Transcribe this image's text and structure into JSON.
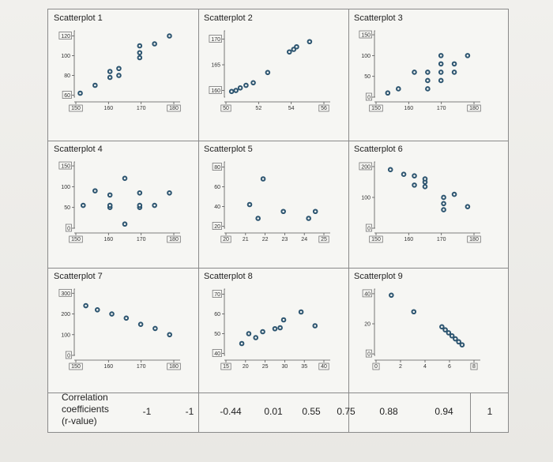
{
  "chart_data": [
    {
      "type": "scatter",
      "title": "Scatterplot 1",
      "xlim": [
        148,
        182
      ],
      "ylim": [
        58,
        122
      ],
      "xticks": [
        "150",
        "160",
        "170",
        "180"
      ],
      "xboxed": [
        0,
        3
      ],
      "yticks": [
        {
          "v": 120,
          "t": "120",
          "boxed": true
        },
        {
          "v": 100,
          "t": "100"
        },
        {
          "v": 80,
          "t": "80"
        },
        {
          "v": 60,
          "t": "60",
          "boxed": true
        }
      ],
      "x": [
        150,
        155,
        160,
        160,
        163,
        163,
        170,
        170,
        170,
        175,
        180
      ],
      "y": [
        62,
        70,
        78,
        84,
        80,
        87,
        98,
        103,
        110,
        112,
        120
      ]
    },
    {
      "type": "scatter",
      "title": "Scatterplot 2",
      "xlim": [
        49.5,
        56.5
      ],
      "ylim": [
        158.7,
        171
      ],
      "xticks": [
        "50",
        "52",
        "54",
        "56"
      ],
      "xboxed": [
        0,
        3
      ],
      "yticks": [
        {
          "v": 170,
          "t": "170",
          "boxed": true
        },
        {
          "v": 165,
          "t": "165"
        },
        {
          "v": 160,
          "t": "160",
          "boxed": true
        }
      ],
      "x": [
        50,
        50.3,
        50.6,
        51,
        51.5,
        52.5,
        54,
        54.3,
        54.5,
        55.4
      ],
      "y": [
        159.8,
        160,
        160.5,
        161,
        161.5,
        163.5,
        167.5,
        168,
        168.5,
        169.5
      ]
    },
    {
      "type": "scatter",
      "title": "Scatterplot 3",
      "xlim": [
        145,
        183
      ],
      "ylim": [
        0,
        152
      ],
      "xticks": [
        "150",
        "160",
        "170",
        "180"
      ],
      "xboxed": [
        0,
        3
      ],
      "yticks": [
        {
          "v": 150,
          "t": "150",
          "boxed": true
        },
        {
          "v": 100,
          "t": "100"
        },
        {
          "v": 50,
          "t": "50"
        },
        {
          "v": 0,
          "t": "0",
          "boxed": true
        }
      ],
      "x": [
        150,
        154,
        160,
        165,
        165,
        165,
        170,
        170,
        170,
        170,
        175,
        175,
        180
      ],
      "y": [
        10,
        20,
        60,
        20,
        40,
        60,
        40,
        60,
        80,
        100,
        60,
        80,
        100
      ]
    },
    {
      "type": "scatter",
      "title": "Scatterplot 4",
      "xlim": [
        148,
        182
      ],
      "ylim": [
        0,
        152
      ],
      "xticks": [
        "150",
        "160",
        "170",
        "180"
      ],
      "xboxed": [
        0,
        3
      ],
      "yticks": [
        {
          "v": 150,
          "t": "150",
          "boxed": true
        },
        {
          "v": 100,
          "t": "100"
        },
        {
          "v": 50,
          "t": "50"
        },
        {
          "v": 0,
          "t": "0",
          "boxed": true
        }
      ],
      "x": [
        151,
        155,
        160,
        160,
        160,
        165,
        165,
        170,
        170,
        170,
        175,
        180
      ],
      "y": [
        55,
        90,
        50,
        55,
        80,
        10,
        120,
        50,
        85,
        55,
        55,
        85
      ]
    },
    {
      "type": "scatter",
      "title": "Scatterplot 5",
      "xlim": [
        19.5,
        25.5
      ],
      "ylim": [
        18,
        82
      ],
      "xticks": [
        "20",
        "21",
        "22",
        "23",
        "24",
        "25"
      ],
      "xboxed": [
        0,
        5
      ],
      "yticks": [
        {
          "v": 80,
          "t": "80",
          "boxed": true
        },
        {
          "v": 60,
          "t": "60"
        },
        {
          "v": 40,
          "t": "40"
        },
        {
          "v": 20,
          "t": "20",
          "boxed": true
        }
      ],
      "x": [
        21,
        21.5,
        21.8,
        23,
        24.5,
        24.9
      ],
      "y": [
        42,
        28,
        68,
        35,
        28,
        35
      ]
    },
    {
      "type": "scatter",
      "title": "Scatterplot 6",
      "xlim": [
        145,
        183
      ],
      "ylim": [
        0,
        205
      ],
      "xticks": [
        "150",
        "160",
        "170",
        "180"
      ],
      "xboxed": [
        0,
        3
      ],
      "yticks": [
        {
          "v": 200,
          "t": "200",
          "boxed": true
        },
        {
          "v": 100,
          "t": "100"
        },
        {
          "v": 0,
          "t": "0",
          "boxed": true
        }
      ],
      "x": [
        151,
        156,
        160,
        160,
        164,
        164,
        164,
        171,
        171,
        171,
        175,
        180
      ],
      "y": [
        190,
        175,
        170,
        140,
        135,
        150,
        160,
        100,
        80,
        60,
        110,
        70
      ]
    },
    {
      "type": "scatter",
      "title": "Scatterplot 7",
      "xlim": [
        147,
        182
      ],
      "ylim": [
        0,
        305
      ],
      "xticks": [
        "150",
        "160",
        "170",
        "180"
      ],
      "xboxed": [
        0,
        3
      ],
      "yticks": [
        {
          "v": 300,
          "t": "300",
          "boxed": true
        },
        {
          "v": 200,
          "t": "200"
        },
        {
          "v": 100,
          "t": "100"
        },
        {
          "v": 0,
          "t": "0",
          "boxed": true
        }
      ],
      "x": [
        151,
        155,
        160,
        165,
        170,
        175,
        180
      ],
      "y": [
        240,
        220,
        200,
        180,
        150,
        130,
        100
      ]
    },
    {
      "type": "scatter",
      "title": "Scatterplot 8",
      "xlim": [
        13,
        42
      ],
      "ylim": [
        39,
        71
      ],
      "xticks": [
        "15",
        "20",
        "25",
        "30",
        "35",
        "40"
      ],
      "xboxed": [
        0,
        5
      ],
      "yticks": [
        {
          "v": 70,
          "t": "70",
          "boxed": true
        },
        {
          "v": 60,
          "t": "60"
        },
        {
          "v": 50,
          "t": "50"
        },
        {
          "v": 40,
          "t": "40",
          "boxed": true
        }
      ],
      "x": [
        18,
        20,
        22,
        24,
        27.5,
        29,
        30,
        35,
        39
      ],
      "y": [
        45,
        50,
        48,
        51,
        52.5,
        53,
        57,
        61,
        54
      ]
    },
    {
      "type": "scatter",
      "title": "Scatterplot 9",
      "xlim": [
        -0.5,
        8.5
      ],
      "ylim": [
        -1,
        41
      ],
      "xticks": [
        "0",
        "2",
        "4",
        "6",
        "8"
      ],
      "xboxed": [
        0,
        4
      ],
      "yticks": [
        {
          "v": 40,
          "t": "40",
          "boxed": true
        },
        {
          "v": 20,
          "t": "20"
        },
        {
          "v": 0,
          "t": "0",
          "boxed": true
        }
      ],
      "x": [
        1,
        3,
        5.5,
        5.8,
        6.1,
        6.4,
        6.7,
        7,
        7.3
      ],
      "y": [
        39,
        28,
        18,
        16,
        14,
        12,
        10,
        8,
        6
      ]
    }
  ],
  "correlation": {
    "label": [
      "Correlation",
      "coefficients",
      "(r-value)"
    ],
    "values": [
      "-1",
      "-1",
      "-0.44",
      "0.01",
      "0.55",
      "0.75",
      "0.88",
      "0.94",
      "1"
    ]
  }
}
